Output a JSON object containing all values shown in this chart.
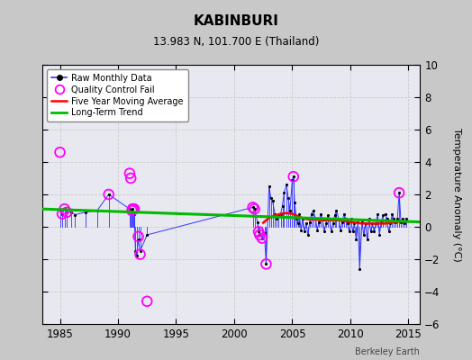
{
  "title": "KABINBURI",
  "subtitle": "13.983 N, 101.700 E (Thailand)",
  "ylabel": "Temperature Anomaly (°C)",
  "watermark": "Berkeley Earth",
  "xlim": [
    1983.5,
    2016.0
  ],
  "ylim": [
    -6,
    10
  ],
  "yticks": [
    -6,
    -4,
    -2,
    0,
    2,
    4,
    6,
    8,
    10
  ],
  "xticks": [
    1985,
    1990,
    1995,
    2000,
    2005,
    2010,
    2015
  ],
  "bg_color": "#c8c8c8",
  "plot_bg_color": "#e8e8f0",
  "raw_color": "#3333ff",
  "raw_dot_color": "#000000",
  "qc_fail_color": "#ff00ff",
  "moving_avg_color": "#ff0000",
  "trend_color": "#00bb00",
  "raw_data": [
    [
      1985.0,
      1.0
    ],
    [
      1985.2,
      0.8
    ],
    [
      1985.4,
      1.1
    ],
    [
      1985.6,
      0.9
    ],
    [
      1986.0,
      0.9
    ],
    [
      1986.3,
      0.75
    ],
    [
      1987.2,
      0.9
    ],
    [
      1988.2,
      1.0
    ],
    [
      1989.2,
      2.0
    ],
    [
      1991.0,
      1.1
    ],
    [
      1991.1,
      1.0
    ],
    [
      1991.2,
      1.0
    ],
    [
      1991.25,
      1.1
    ],
    [
      1991.3,
      0.9
    ],
    [
      1991.4,
      0.8
    ],
    [
      1991.5,
      -1.5
    ],
    [
      1991.6,
      -1.8
    ],
    [
      1991.75,
      -0.8
    ],
    [
      1991.9,
      -1.5
    ],
    [
      1992.5,
      -0.5
    ],
    [
      2001.6,
      1.2
    ],
    [
      2001.75,
      1.1
    ],
    [
      2002.0,
      0.3
    ],
    [
      2002.1,
      -0.3
    ],
    [
      2002.2,
      -0.5
    ],
    [
      2002.4,
      -0.7
    ],
    [
      2002.6,
      -0.4
    ],
    [
      2002.75,
      -2.3
    ],
    [
      2003.0,
      2.5
    ],
    [
      2003.15,
      1.8
    ],
    [
      2003.3,
      1.6
    ],
    [
      2003.5,
      0.8
    ],
    [
      2003.65,
      0.5
    ],
    [
      2003.8,
      0.7
    ],
    [
      2004.0,
      0.8
    ],
    [
      2004.15,
      1.3
    ],
    [
      2004.3,
      2.1
    ],
    [
      2004.5,
      2.6
    ],
    [
      2004.65,
      1.8
    ],
    [
      2004.8,
      1.0
    ],
    [
      2005.0,
      2.9
    ],
    [
      2005.1,
      3.1
    ],
    [
      2005.2,
      1.5
    ],
    [
      2005.35,
      0.5
    ],
    [
      2005.5,
      0.2
    ],
    [
      2005.6,
      0.8
    ],
    [
      2005.75,
      -0.2
    ],
    [
      2005.9,
      0.5
    ],
    [
      2006.05,
      -0.3
    ],
    [
      2006.2,
      0.2
    ],
    [
      2006.35,
      -0.5
    ],
    [
      2006.5,
      0.3
    ],
    [
      2006.65,
      0.8
    ],
    [
      2006.8,
      1.0
    ],
    [
      2007.0,
      0.5
    ],
    [
      2007.15,
      -0.2
    ],
    [
      2007.3,
      0.3
    ],
    [
      2007.45,
      0.8
    ],
    [
      2007.6,
      0.5
    ],
    [
      2007.75,
      -0.3
    ],
    [
      2007.9,
      0.2
    ],
    [
      2008.05,
      0.7
    ],
    [
      2008.2,
      0.5
    ],
    [
      2008.35,
      -0.3
    ],
    [
      2008.5,
      0.2
    ],
    [
      2008.65,
      0.7
    ],
    [
      2008.8,
      1.0
    ],
    [
      2009.0,
      0.5
    ],
    [
      2009.15,
      -0.2
    ],
    [
      2009.3,
      0.3
    ],
    [
      2009.45,
      0.8
    ],
    [
      2009.6,
      0.5
    ],
    [
      2009.75,
      0.2
    ],
    [
      2009.9,
      -0.3
    ],
    [
      2010.05,
      0.5
    ],
    [
      2010.2,
      -0.3
    ],
    [
      2010.35,
      0.2
    ],
    [
      2010.5,
      -0.8
    ],
    [
      2010.65,
      0.3
    ],
    [
      2010.8,
      -2.6
    ],
    [
      2011.0,
      0.3
    ],
    [
      2011.15,
      -0.5
    ],
    [
      2011.3,
      0.2
    ],
    [
      2011.45,
      -0.8
    ],
    [
      2011.6,
      0.5
    ],
    [
      2011.75,
      -0.3
    ],
    [
      2011.9,
      0.2
    ],
    [
      2012.05,
      -0.3
    ],
    [
      2012.2,
      0.2
    ],
    [
      2012.35,
      0.8
    ],
    [
      2012.5,
      -0.5
    ],
    [
      2012.65,
      0.3
    ],
    [
      2012.8,
      0.7
    ],
    [
      2013.0,
      0.8
    ],
    [
      2013.15,
      0.5
    ],
    [
      2013.3,
      -0.3
    ],
    [
      2013.45,
      0.2
    ],
    [
      2013.6,
      0.8
    ],
    [
      2013.75,
      0.5
    ],
    [
      2013.9,
      0.3
    ],
    [
      2014.05,
      0.5
    ],
    [
      2014.2,
      2.1
    ],
    [
      2014.35,
      0.3
    ],
    [
      2014.5,
      0.5
    ],
    [
      2014.65,
      0.2
    ],
    [
      2014.8,
      0.5
    ]
  ],
  "qc_fail_data": [
    [
      1985.0,
      4.6
    ],
    [
      1985.2,
      0.8
    ],
    [
      1985.4,
      1.1
    ],
    [
      1985.6,
      0.9
    ],
    [
      1989.2,
      2.0
    ],
    [
      1991.0,
      3.3
    ],
    [
      1991.1,
      3.0
    ],
    [
      1991.2,
      1.0
    ],
    [
      1991.25,
      1.1
    ],
    [
      1991.3,
      1.1
    ],
    [
      1991.4,
      1.1
    ],
    [
      1991.75,
      -0.6
    ],
    [
      1991.9,
      -1.7
    ],
    [
      1992.5,
      -4.6
    ],
    [
      2001.6,
      1.2
    ],
    [
      2001.75,
      1.1
    ],
    [
      2002.1,
      -0.3
    ],
    [
      2002.2,
      -0.5
    ],
    [
      2002.4,
      -0.7
    ],
    [
      2002.75,
      -2.3
    ],
    [
      2005.1,
      3.1
    ],
    [
      2014.2,
      2.1
    ]
  ],
  "moving_avg_data": [
    [
      2002.5,
      0.25
    ],
    [
      2003.0,
      0.55
    ],
    [
      2003.5,
      0.7
    ],
    [
      2004.0,
      0.8
    ],
    [
      2004.5,
      0.85
    ],
    [
      2005.0,
      0.8
    ],
    [
      2005.5,
      0.65
    ],
    [
      2006.0,
      0.5
    ],
    [
      2006.5,
      0.45
    ],
    [
      2007.0,
      0.45
    ],
    [
      2007.5,
      0.4
    ],
    [
      2008.0,
      0.4
    ],
    [
      2008.5,
      0.4
    ],
    [
      2009.0,
      0.4
    ],
    [
      2009.5,
      0.35
    ],
    [
      2010.0,
      0.3
    ],
    [
      2010.5,
      0.25
    ],
    [
      2011.0,
      0.2
    ],
    [
      2011.5,
      0.2
    ],
    [
      2012.0,
      0.2
    ],
    [
      2012.5,
      0.2
    ],
    [
      2013.0,
      0.2
    ],
    [
      2013.5,
      0.25
    ],
    [
      2014.0,
      0.3
    ],
    [
      2014.5,
      0.35
    ]
  ],
  "trend_x": [
    1983.5,
    2016.0
  ],
  "trend_y": [
    1.1,
    0.3
  ]
}
